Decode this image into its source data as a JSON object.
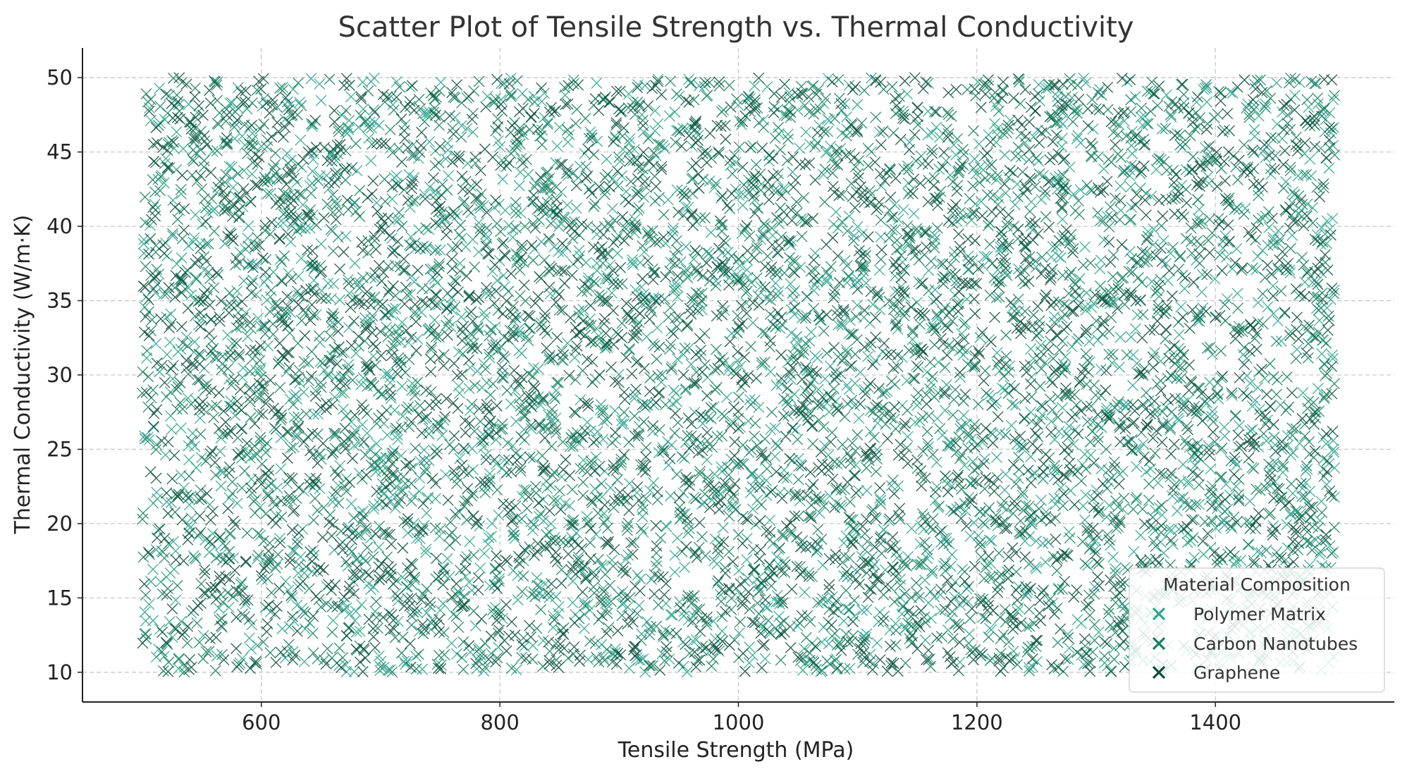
{
  "chart_data": {
    "type": "scatter",
    "title": "Scatter Plot of Tensile Strength vs. Thermal Conductivity",
    "xlabel": "Tensile Strength (MPa)",
    "ylabel": "Thermal Conductivity (W/m·K)",
    "xlim": [
      450,
      1550
    ],
    "ylim": [
      8,
      52
    ],
    "xticks": [
      600,
      800,
      1000,
      1200,
      1400
    ],
    "yticks": [
      10,
      15,
      20,
      25,
      30,
      35,
      40,
      45,
      50
    ],
    "grid": true,
    "marker": "x",
    "legend": {
      "title": "Material Composition",
      "placement": "lower-right"
    },
    "points_per_series": 2500,
    "series_x_range": [
      500,
      1500
    ],
    "series_y_range": [
      10,
      50
    ],
    "series": [
      {
        "name": "Polymer Matrix",
        "color": "#2ca58d"
      },
      {
        "name": "Carbon Nanotubes",
        "color": "#177e5e"
      },
      {
        "name": "Graphene",
        "color": "#0b4d3a"
      }
    ]
  }
}
